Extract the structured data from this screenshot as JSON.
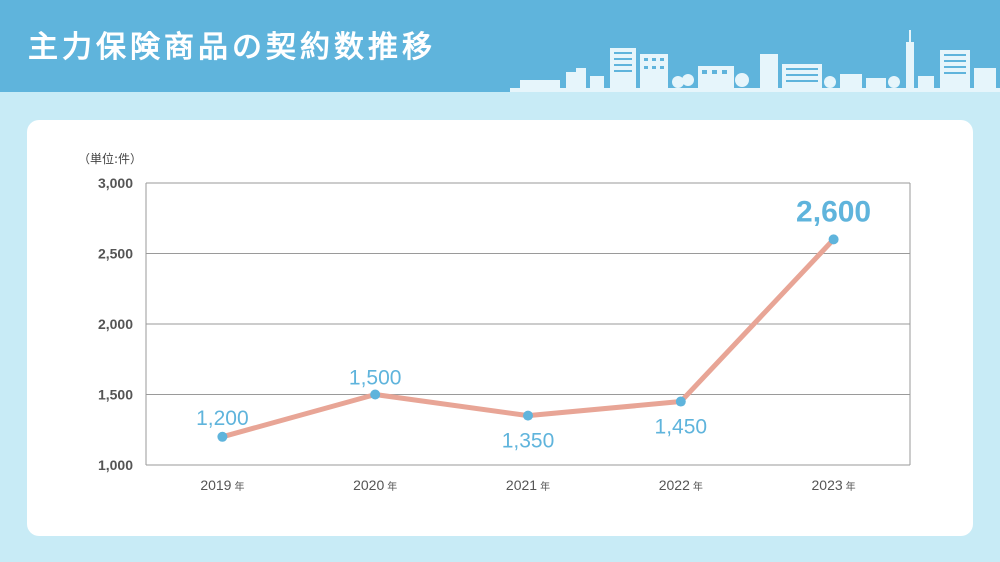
{
  "header": {
    "title": "主力保険商品の契約数推移"
  },
  "colors": {
    "header_bg": "#5fb4dc",
    "page_bg": "#c8ebf6",
    "line": "#e8a596",
    "point": "#5fb4dc",
    "label": "#5fb4dc"
  },
  "unit_label": "（単位:件）",
  "year_suffix": "年",
  "chart_data": {
    "type": "line",
    "title": "",
    "xlabel": "",
    "ylabel": "",
    "categories": [
      "2019",
      "2020",
      "2021",
      "2022",
      "2023"
    ],
    "values": [
      1200,
      1500,
      1350,
      1450,
      2600
    ],
    "data_labels": [
      "1,200",
      "1,500",
      "1,350",
      "1,450",
      "2,600"
    ],
    "ylim": [
      1000,
      3000
    ],
    "yticks": [
      1000,
      1500,
      2000,
      2500,
      3000
    ],
    "ytick_labels": [
      "1,000",
      "1,500",
      "2,000",
      "2,500",
      "3,000"
    ],
    "grid": true
  }
}
